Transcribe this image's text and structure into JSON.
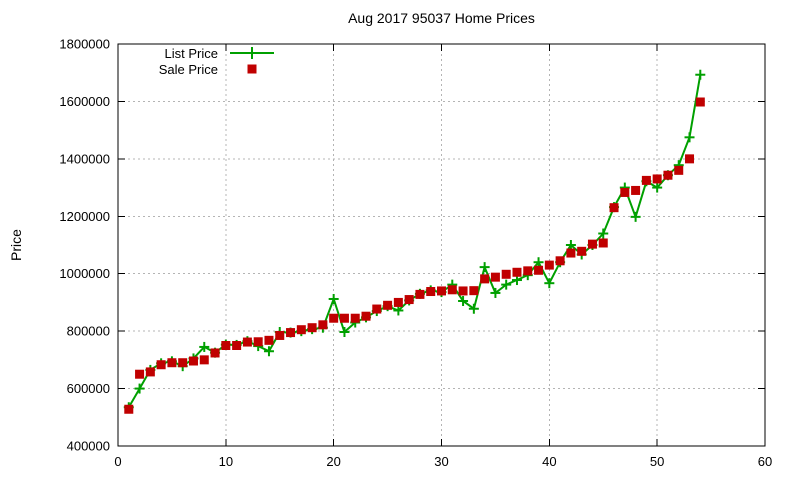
{
  "chart_data": {
    "type": "line",
    "title": "Aug 2017 95037 Home Prices",
    "xlabel": "",
    "ylabel": "Price",
    "xlim": [
      0,
      60
    ],
    "ylim": [
      400000,
      1800000
    ],
    "xticks": [
      0,
      10,
      20,
      30,
      40,
      50,
      60
    ],
    "yticks": [
      400000,
      600000,
      800000,
      1000000,
      1200000,
      1400000,
      1600000,
      1800000
    ],
    "grid": true,
    "legend_position": "top-left-inside",
    "x": [
      1,
      2,
      3,
      4,
      5,
      6,
      7,
      8,
      9,
      10,
      11,
      12,
      13,
      14,
      15,
      16,
      17,
      18,
      19,
      20,
      21,
      22,
      23,
      24,
      25,
      26,
      27,
      28,
      29,
      30,
      31,
      32,
      33,
      34,
      35,
      36,
      37,
      38,
      39,
      40,
      41,
      42,
      43,
      44,
      45,
      46,
      47,
      48,
      49,
      50,
      51,
      52,
      53,
      54
    ],
    "series": [
      {
        "name": "List Price",
        "marker": "plus",
        "with_line": true,
        "color": "#00a000",
        "values": [
          535000,
          600000,
          665000,
          688000,
          695000,
          678000,
          705000,
          745000,
          725000,
          753000,
          752000,
          765000,
          748000,
          730000,
          797000,
          795000,
          800000,
          807000,
          812000,
          912000,
          797000,
          830000,
          848000,
          870000,
          887000,
          872000,
          907000,
          930000,
          942000,
          936000,
          962000,
          905000,
          878000,
          1023000,
          933000,
          962000,
          978000,
          995000,
          1040000,
          967000,
          1040000,
          1100000,
          1067000,
          1100000,
          1140000,
          1232000,
          1300000,
          1198000,
          1322000,
          1300000,
          1343000,
          1378000,
          1475000,
          1693000
        ]
      },
      {
        "name": "Sale Price",
        "marker": "square",
        "with_line": false,
        "color": "#c00000",
        "values": [
          528000,
          650000,
          658000,
          683000,
          690000,
          690000,
          696000,
          700000,
          724000,
          750000,
          750000,
          762000,
          763000,
          768000,
          785000,
          795000,
          805000,
          812000,
          822000,
          845000,
          845000,
          845000,
          852000,
          877000,
          890000,
          900000,
          910000,
          928000,
          938000,
          940000,
          944000,
          940000,
          941000,
          982000,
          988000,
          998000,
          1005000,
          1010000,
          1012000,
          1030000,
          1045000,
          1072000,
          1078000,
          1103000,
          1107000,
          1230000,
          1283000,
          1290000,
          1325000,
          1330000,
          1343000,
          1360000,
          1400000,
          1598000
        ]
      }
    ]
  },
  "colors": {
    "background": "#ffffff",
    "axis": "#000000",
    "grid": "#b4b4b4",
    "text": "#000000"
  }
}
